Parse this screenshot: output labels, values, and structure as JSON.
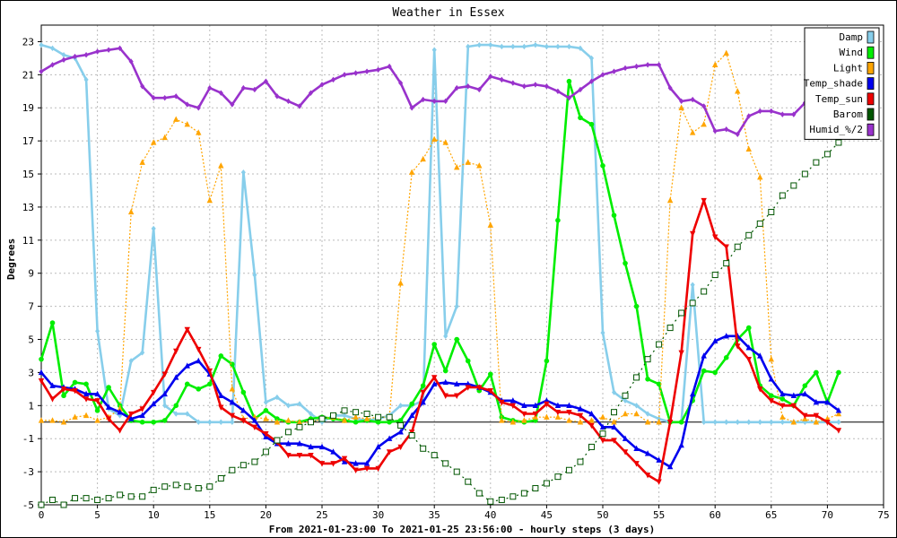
{
  "chart_data": {
    "type": "line",
    "title": "Weather in Essex",
    "xlabel": "From 2021-01-23:00 To 2021-01-25 23:56:00 - hourly steps (3 days)",
    "ylabel": "Degrees",
    "xlim": [
      0,
      75
    ],
    "ylim": [
      -5,
      24
    ],
    "xticks": [
      0,
      5,
      10,
      15,
      20,
      25,
      30,
      35,
      40,
      45,
      50,
      55,
      60,
      65,
      70,
      75
    ],
    "yticks": [
      -5,
      -3,
      -1,
      1,
      3,
      5,
      7,
      9,
      11,
      13,
      15,
      17,
      19,
      21,
      23
    ],
    "grid": true,
    "zero_line": true,
    "legend_position": "top-right",
    "series": [
      {
        "name": "Damp",
        "color": "#87ceeb",
        "marker": "diamond",
        "dash": "",
        "values": [
          22.8,
          22.6,
          22.2,
          22.0,
          20.7,
          5.5,
          0.8,
          0.4,
          3.7,
          4.2,
          11.7,
          1.0,
          0.5,
          0.5,
          0.0,
          0.0,
          0.0,
          0.0,
          15.1,
          8.9,
          1.2,
          1.5,
          1.0,
          1.1,
          0.5,
          0.0,
          0.4,
          0.4,
          0.2,
          0.1,
          0.2,
          0.4,
          1.0,
          1.0,
          1.3,
          22.5,
          5.2,
          7.0,
          22.7,
          22.8,
          22.8,
          22.7,
          22.7,
          22.7,
          22.8,
          22.7,
          22.7,
          22.7,
          22.6,
          22.0,
          5.4,
          1.8,
          1.3,
          1.0,
          0.5,
          0.2,
          0.0,
          0.0,
          8.3,
          0.0,
          0.0,
          0.0,
          0.0,
          0.0,
          0.0,
          0.0,
          0.0,
          0.0,
          0.0,
          0.0,
          0.0,
          0.0
        ]
      },
      {
        "name": "Wind",
        "color": "#00ee00",
        "marker": "circle",
        "dash": "",
        "values": [
          3.8,
          6.0,
          1.6,
          2.4,
          2.3,
          0.7,
          2.1,
          1.0,
          0.1,
          0.0,
          0.0,
          0.1,
          1.0,
          2.3,
          2.0,
          2.3,
          4.0,
          3.5,
          1.8,
          0.2,
          0.7,
          0.2,
          0.0,
          0.0,
          0.2,
          0.3,
          0.2,
          0.1,
          0.0,
          0.1,
          0.0,
          0.0,
          0.1,
          1.1,
          2.2,
          4.7,
          3.1,
          5.0,
          3.7,
          1.9,
          2.9,
          0.3,
          0.1,
          0.0,
          0.1,
          3.7,
          12.2,
          20.6,
          18.4,
          18.0,
          15.5,
          12.5,
          9.6,
          7.0,
          2.6,
          2.3,
          0.0,
          0.0,
          1.3,
          3.1,
          3.0,
          3.9,
          5.0,
          5.7,
          2.2,
          1.6,
          1.4,
          1.0,
          2.2,
          3.0,
          1.2,
          3.0
        ]
      },
      {
        "name": "Light",
        "color": "#ffa500",
        "marker": "triangle-up",
        "dash": "2,2",
        "values": [
          0.1,
          0.1,
          0.0,
          0.3,
          0.4,
          0.1,
          0.3,
          0.8,
          12.7,
          15.7,
          16.9,
          17.2,
          18.3,
          18.0,
          17.5,
          13.4,
          15.5,
          2.0,
          0.2,
          0.3,
          0.2,
          0.0,
          0.1,
          0.0,
          0.0,
          0.2,
          0.3,
          0.1,
          0.3,
          0.2,
          0.3,
          0.3,
          8.4,
          15.1,
          15.9,
          17.1,
          16.9,
          15.4,
          15.7,
          15.5,
          11.9,
          0.1,
          0.0,
          0.1,
          0.3,
          0.3,
          0.3,
          0.1,
          0.0,
          0.1,
          0.3,
          0.0,
          0.5,
          0.5,
          0.0,
          0.0,
          13.4,
          19.0,
          17.5,
          18.0,
          21.6,
          22.3,
          20.0,
          16.5,
          14.8,
          3.8,
          0.3,
          0.0,
          0.2,
          0.0,
          0.2,
          0.5
        ]
      },
      {
        "name": "Temp_shade",
        "color": "#0000ee",
        "marker": "triangle-up",
        "dash": "",
        "values": [
          3.0,
          2.2,
          2.1,
          2.0,
          1.7,
          1.7,
          0.9,
          0.6,
          0.2,
          0.4,
          1.1,
          1.7,
          2.7,
          3.4,
          3.7,
          2.9,
          1.6,
          1.2,
          0.7,
          0.1,
          -0.9,
          -1.3,
          -1.3,
          -1.3,
          -1.5,
          -1.5,
          -1.8,
          -2.4,
          -2.5,
          -2.5,
          -1.5,
          -1.0,
          -0.6,
          0.4,
          1.2,
          2.3,
          2.4,
          2.3,
          2.3,
          2.1,
          1.8,
          1.3,
          1.3,
          1.0,
          1.0,
          1.3,
          1.0,
          1.0,
          0.8,
          0.5,
          -0.3,
          -0.3,
          -1.0,
          -1.6,
          -1.9,
          -2.3,
          -2.7,
          -1.4,
          1.7,
          4.0,
          4.9,
          5.2,
          5.2,
          4.5,
          4.0,
          2.6,
          1.7,
          1.6,
          1.7,
          1.2,
          1.2,
          0.7
        ]
      },
      {
        "name": "Temp_sun",
        "color": "#ee0000",
        "marker": "triangle-down",
        "dash": "",
        "values": [
          2.5,
          1.4,
          2.0,
          1.9,
          1.4,
          1.3,
          0.2,
          -0.5,
          0.5,
          0.8,
          1.8,
          2.9,
          4.3,
          5.6,
          4.4,
          3.1,
          0.9,
          0.4,
          0.1,
          -0.3,
          -0.7,
          -1.2,
          -2.0,
          -2.0,
          -2.0,
          -2.5,
          -2.5,
          -2.2,
          -2.9,
          -2.8,
          -2.8,
          -1.8,
          -1.5,
          -0.6,
          1.8,
          2.7,
          1.6,
          1.6,
          2.1,
          2.1,
          1.9,
          1.2,
          1.0,
          0.5,
          0.5,
          1.1,
          0.6,
          0.6,
          0.4,
          -0.2,
          -1.1,
          -1.1,
          -1.8,
          -2.5,
          -3.2,
          -3.6,
          0.0,
          4.2,
          11.4,
          13.4,
          11.2,
          10.6,
          4.6,
          3.8,
          2.0,
          1.3,
          1.0,
          1.0,
          0.4,
          0.4,
          0.0,
          -0.5
        ]
      },
      {
        "name": "Barom",
        "color": "#005500",
        "marker": "square",
        "dash": "2,4",
        "values": [
          -5.0,
          -4.7,
          -5.0,
          -4.6,
          -4.6,
          -4.7,
          -4.6,
          -4.4,
          -4.5,
          -4.5,
          -4.1,
          -3.9,
          -3.8,
          -3.9,
          -4.0,
          -3.9,
          -3.4,
          -2.9,
          -2.6,
          -2.4,
          -1.8,
          -1.1,
          -0.6,
          -0.3,
          0.0,
          0.2,
          0.4,
          0.7,
          0.6,
          0.5,
          0.3,
          0.3,
          -0.2,
          -0.8,
          -1.6,
          -2.0,
          -2.5,
          -3.0,
          -3.6,
          -4.3,
          -4.8,
          -4.7,
          -4.5,
          -4.3,
          -4.0,
          -3.7,
          -3.3,
          -2.9,
          -2.4,
          -1.5,
          -0.7,
          0.6,
          1.6,
          2.7,
          3.8,
          4.7,
          5.7,
          6.6,
          7.2,
          7.9,
          8.9,
          9.6,
          10.6,
          11.3,
          12.0,
          12.7,
          13.7,
          14.3,
          15.0,
          15.7,
          16.2,
          16.9
        ]
      },
      {
        "name": "Humid_%/2",
        "color": "#9932cc",
        "marker": "diamond",
        "dash": "",
        "values": [
          21.2,
          21.6,
          21.9,
          22.1,
          22.2,
          22.4,
          22.5,
          22.6,
          21.8,
          20.3,
          19.6,
          19.6,
          19.7,
          19.2,
          19.0,
          20.2,
          19.9,
          19.2,
          20.2,
          20.1,
          20.6,
          19.7,
          19.4,
          19.1,
          19.9,
          20.4,
          20.7,
          21.0,
          21.1,
          21.2,
          21.3,
          21.5,
          20.5,
          19.0,
          19.5,
          19.4,
          19.4,
          20.2,
          20.3,
          20.1,
          20.9,
          20.7,
          20.5,
          20.3,
          20.4,
          20.3,
          20.0,
          19.6,
          20.1,
          20.6,
          21.0,
          21.2,
          21.4,
          21.5,
          21.6,
          21.6,
          20.2,
          19.4,
          19.5,
          19.1,
          17.6,
          17.7,
          17.4,
          18.5,
          18.8,
          18.8,
          18.6,
          18.6,
          19.3,
          19.5,
          19.8,
          20.1
        ]
      }
    ]
  }
}
